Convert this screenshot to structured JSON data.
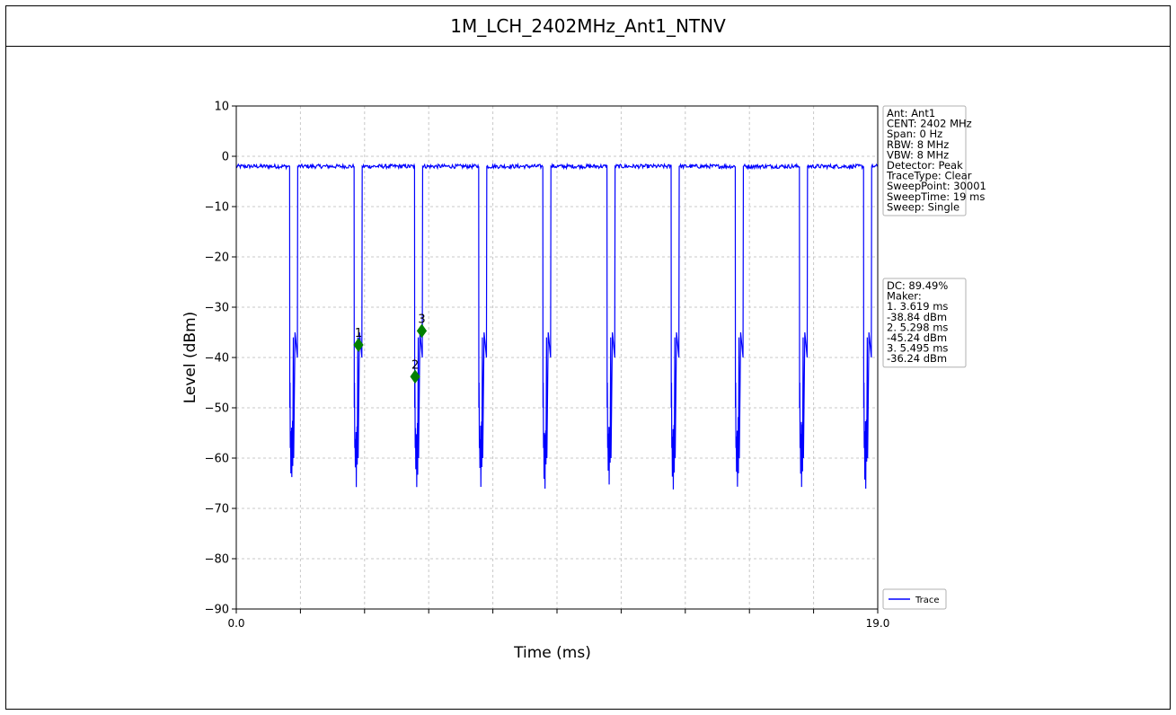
{
  "header": {
    "title": "1M_LCH_2402MHz_Ant1_NTNV"
  },
  "chart_data": {
    "type": "line",
    "xlabel": "Time (ms)",
    "ylabel": "Level (dBm)",
    "xlim": [
      0.0,
      19.0
    ],
    "ylim": [
      -90,
      10
    ],
    "x_tick_labels": [
      "0.0",
      "19.0"
    ],
    "x_minor_ticks": [
      1.9,
      3.8,
      5.7,
      7.6,
      9.5,
      11.4,
      13.3,
      15.2,
      17.1
    ],
    "y_ticks": [
      10,
      0,
      -10,
      -20,
      -30,
      -40,
      -50,
      -60,
      -70,
      -80,
      -90
    ],
    "y_tick_labels": [
      "10",
      "0",
      "−10",
      "−20",
      "−30",
      "−40",
      "−50",
      "−60",
      "−70",
      "−80",
      "−90"
    ],
    "grid": true,
    "trace_color": "#0000ff",
    "marker_color": "#008000",
    "series": [
      {
        "name": "Trace",
        "high_level_dbm": -2,
        "gap_floor_dbm": -60,
        "gaps": [
          {
            "start": 1.58,
            "end": 1.82
          },
          {
            "start": 3.49,
            "end": 3.73
          },
          {
            "start": 5.28,
            "end": 5.52
          },
          {
            "start": 7.18,
            "end": 7.42
          },
          {
            "start": 9.08,
            "end": 9.32
          },
          {
            "start": 10.98,
            "end": 11.22
          },
          {
            "start": 12.88,
            "end": 13.12
          },
          {
            "start": 14.78,
            "end": 15.02
          },
          {
            "start": 16.68,
            "end": 16.92
          },
          {
            "start": 18.58,
            "end": 18.82
          }
        ]
      }
    ],
    "markers": [
      {
        "label": "1",
        "x": 3.619,
        "y": -37.5
      },
      {
        "label": "2",
        "x": 5.298,
        "y": -43.8
      },
      {
        "label": "3",
        "x": 5.495,
        "y": -34.7
      }
    ],
    "settings_box": [
      "Ant: Ant1",
      "CENT: 2402 MHz",
      "Span: 0 Hz",
      "RBW: 8 MHz",
      "VBW: 8 MHz",
      "Detector: Peak",
      "TraceType: Clear",
      "SweepPoint: 30001",
      "SweepTime: 19 ms",
      "Sweep: Single"
    ],
    "marker_box": [
      "DC: 89.49%",
      "Maker:",
      "1. 3.619 ms",
      "    -38.84 dBm",
      "2. 5.298 ms",
      "    -45.24 dBm",
      "3. 5.495 ms",
      "    -36.24 dBm"
    ],
    "legend": {
      "label": "Trace",
      "position": "bottom-right"
    }
  }
}
